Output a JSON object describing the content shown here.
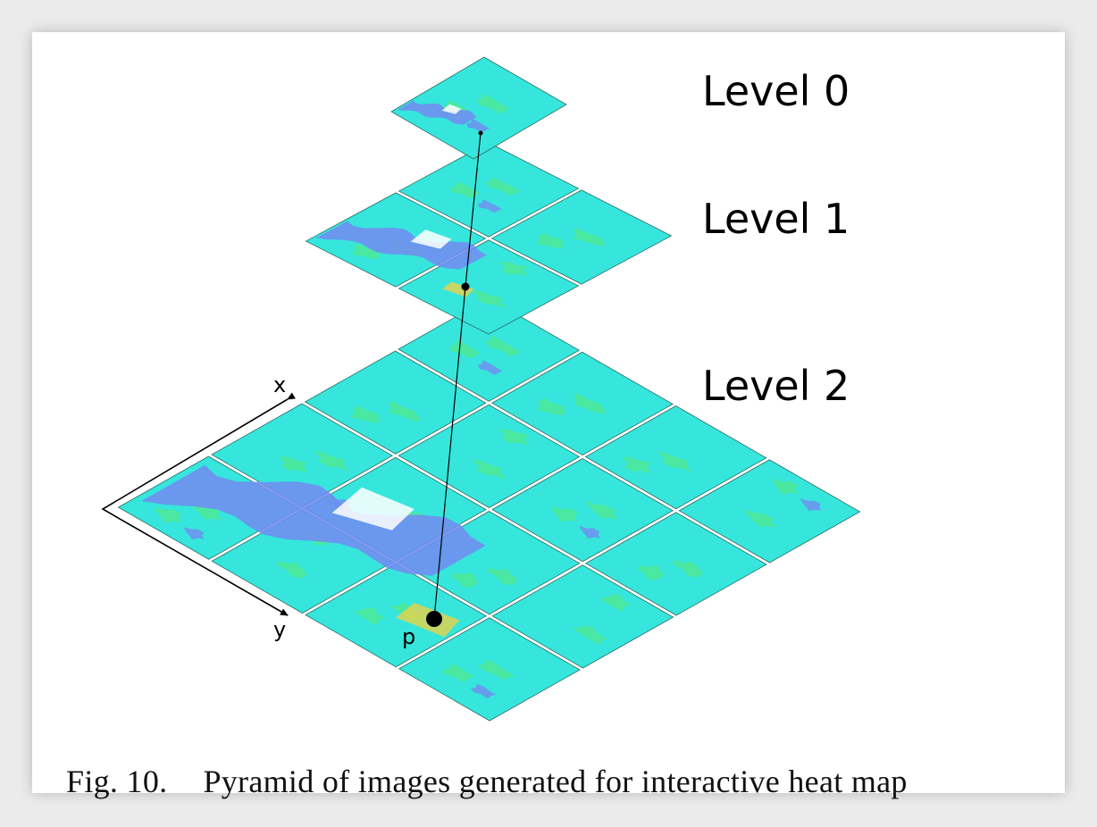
{
  "levels": [
    {
      "label": "Level 0",
      "grid": 1
    },
    {
      "label": "Level 1",
      "grid": 2
    },
    {
      "label": "Level 2",
      "grid": 4
    }
  ],
  "axes": {
    "x_label": "x",
    "y_label": "y"
  },
  "point_label": "p",
  "caption": {
    "figure_label": "Fig. 10.",
    "text": "Pyramid of images generated for interactive heat map"
  },
  "colors": {
    "tile_base": "#36e6dc",
    "tile_green": "#52e887",
    "water": "#6f8ff0",
    "highlight": "#ffffff",
    "warm": "#e8d24a"
  }
}
